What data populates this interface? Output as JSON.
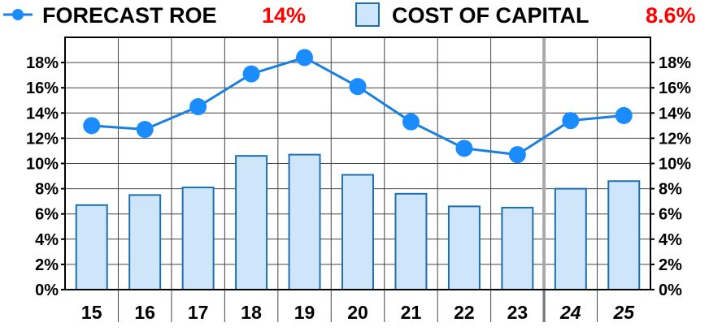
{
  "legend": {
    "roe_label": "FORECAST ROE",
    "roe_value": "14%",
    "coc_label": "COST OF CAPITAL",
    "coc_value": "8.6%"
  },
  "colors": {
    "line": "#1a7fe0",
    "marker": "#1a8cff",
    "bar_fill": "#cfe6fa",
    "bar_stroke": "#1c6fb0",
    "value_red": "#ff0000",
    "grid": "#444444",
    "estimate_divider": "#aaaaaa"
  },
  "chart_data": {
    "type": "bar+line",
    "categories": [
      "15",
      "16",
      "17",
      "18",
      "19",
      "20",
      "21",
      "22",
      "23",
      "24",
      "25"
    ],
    "estimate_categories": [
      "24",
      "25"
    ],
    "series": [
      {
        "name": "FORECAST ROE",
        "type": "line",
        "values": [
          13.0,
          12.7,
          14.5,
          17.1,
          18.4,
          16.1,
          13.3,
          11.2,
          10.7,
          13.4,
          13.8
        ]
      },
      {
        "name": "COST OF CAPITAL",
        "type": "bar",
        "values": [
          6.7,
          7.5,
          8.1,
          10.6,
          10.7,
          9.1,
          7.6,
          6.6,
          6.5,
          8.0,
          8.6
        ]
      }
    ],
    "ylim": [
      0,
      20
    ],
    "yticks": [
      0,
      2,
      4,
      6,
      8,
      10,
      12,
      14,
      16,
      18
    ],
    "ytick_labels": [
      "0%",
      "2%",
      "4%",
      "6%",
      "8%",
      "10%",
      "12%",
      "14%",
      "16%",
      "18%"
    ],
    "grid": true,
    "legend_position": "top"
  }
}
